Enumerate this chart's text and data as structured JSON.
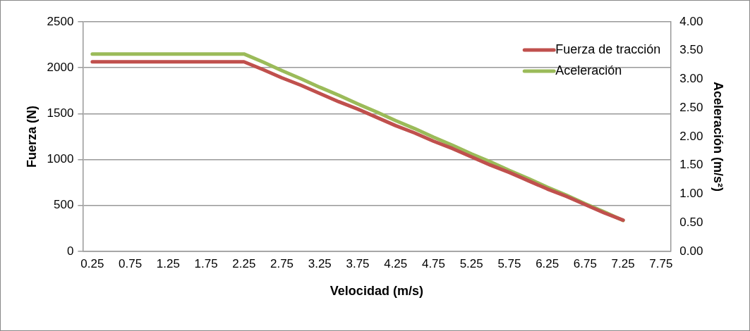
{
  "chart_data": {
    "type": "line",
    "xlabel": "Velocidad (m/s)",
    "ylabel": "Fuerza (N)",
    "y2label": "Aceleración (m/s²)",
    "categories": [
      "0.25",
      null,
      "0.75",
      null,
      "1.25",
      null,
      "1.75",
      null,
      "2.25",
      null,
      "2.75",
      null,
      "3.25",
      null,
      "3.75",
      null,
      "4.25",
      null,
      "4.75",
      null,
      "5.25",
      null,
      "5.75",
      null,
      "6.25",
      null,
      "6.75",
      null,
      "7.25",
      null,
      "7.75"
    ],
    "series": [
      {
        "name": "Fuerza de tracción",
        "color": "#c0504d",
        "values": [
          2065,
          2065,
          2065,
          2065,
          2065,
          2065,
          2065,
          2065,
          2065,
          1980,
          1890,
          1810,
          1720,
          1630,
          1550,
          1460,
          1370,
          1290,
          1200,
          1120,
          1030,
          940,
          860,
          770,
          680,
          600,
          510,
          420,
          340,
          null,
          null
        ]
      },
      {
        "name": "Aceleración",
        "color": "#9bbb59",
        "axis": "y2",
        "values": [
          3.44,
          3.44,
          3.44,
          3.44,
          3.44,
          3.44,
          3.44,
          3.44,
          3.44,
          3.3,
          3.15,
          3.01,
          2.86,
          2.72,
          2.57,
          2.43,
          2.28,
          2.14,
          1.99,
          1.85,
          1.7,
          1.56,
          1.41,
          1.27,
          1.12,
          0.98,
          0.83,
          0.69,
          0.54,
          null,
          null
        ]
      }
    ],
    "ylim": [
      0,
      2500
    ],
    "yticks": [
      0,
      500,
      1000,
      1500,
      2000,
      2500
    ],
    "y2lim": [
      0,
      4
    ],
    "y2ticks": [
      {
        "value": 0,
        "label": "0.00"
      },
      {
        "value": 0.5,
        "label": "0.50"
      },
      {
        "value": 1,
        "label": "1.00"
      },
      {
        "value": 1.5,
        "label": "1.50"
      },
      {
        "value": 2,
        "label": "2.00"
      },
      {
        "value": 2.5,
        "label": "2.50"
      },
      {
        "value": 3,
        "label": "3.00"
      },
      {
        "value": 3.5,
        "label": "3.50"
      },
      {
        "value": 4,
        "label": "4.00"
      }
    ],
    "grid": "y",
    "legend": "top right",
    "marker": "none",
    "line_style": "solid"
  }
}
